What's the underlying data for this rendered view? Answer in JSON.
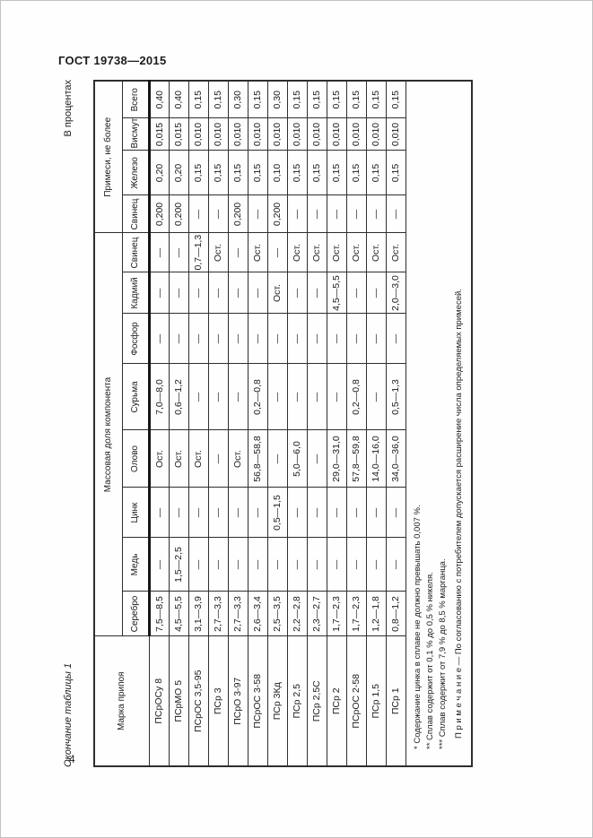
{
  "page": {
    "standard_number": "ГОСТ 19738—2015",
    "page_number": "4",
    "table_caption": "Окончание таблицы 1",
    "units_label": "В процентах"
  },
  "table": {
    "header": {
      "grade": "Марка припоя",
      "mass_fraction": "Массовая доля компонента",
      "impurities": "Примеси, не более"
    },
    "sub_headers": [
      "Серебро",
      "Медь",
      "Цинк",
      "Олово",
      "Сурьма",
      "Фосфор",
      "Кадмий",
      "Свинец",
      "Свинец",
      "Железо",
      "Висмут",
      "Всего"
    ],
    "rows": [
      {
        "grade": "ПСрОСу 8",
        "values": [
          "7,5—8,5",
          "—",
          "—",
          "Ост.",
          "7,0—8,0",
          "—",
          "—",
          "—",
          "0,200",
          "0,20",
          "0,015",
          "0,40"
        ]
      },
      {
        "grade": "ПСрМО 5",
        "values": [
          "4,5—5,5",
          "1,5—2,5",
          "—",
          "Ост.",
          "0,6—1,2",
          "—",
          "—",
          "—",
          "0,200",
          "0,20",
          "0,015",
          "0,40"
        ]
      },
      {
        "grade": "ПСрОС 3,5-95",
        "values": [
          "3,1—3,9",
          "—",
          "—",
          "Ост.",
          "—",
          "—",
          "—",
          "0,7—1,3",
          "—",
          "0,15",
          "0,010",
          "0,15"
        ]
      },
      {
        "grade": "ПСр 3",
        "values": [
          "2,7—3,3",
          "—",
          "—",
          "—",
          "—",
          "—",
          "—",
          "Ост.",
          "—",
          "0,15",
          "0,010",
          "0,15"
        ]
      },
      {
        "grade": "ПСрО 3-97",
        "values": [
          "2,7—3,3",
          "—",
          "—",
          "Ост.",
          "—",
          "—",
          "—",
          "—",
          "0,200",
          "0,15",
          "0,010",
          "0,30"
        ]
      },
      {
        "grade": "ПСрОС 3-58",
        "values": [
          "2,6—3,4",
          "—",
          "—",
          "56,8—58,8",
          "0,2—0,8",
          "—",
          "—",
          "Ост.",
          "—",
          "0,15",
          "0,010",
          "0,15"
        ]
      },
      {
        "grade": "ПСр 3Кд",
        "values": [
          "2,5—3,5",
          "—",
          "0,5—1,5",
          "—",
          "—",
          "—",
          "Ост.",
          "—",
          "0,200",
          "0,10",
          "0,010",
          "0,30"
        ]
      },
      {
        "grade": "ПСр 2,5",
        "values": [
          "2,2—2,8",
          "—",
          "—",
          "5,0—6,0",
          "—",
          "—",
          "—",
          "Ост.",
          "—",
          "0,15",
          "0,010",
          "0,15"
        ]
      },
      {
        "grade": "ПСр 2,5С",
        "values": [
          "2,3—2,7",
          "—",
          "—",
          "—",
          "—",
          "—",
          "—",
          "Ост.",
          "—",
          "0,15",
          "0,010",
          "0,15"
        ]
      },
      {
        "grade": "ПСр 2",
        "values": [
          "1,7—2,3",
          "—",
          "—",
          "29,0—31,0",
          "—",
          "—",
          "4,5—5,5",
          "Ост.",
          "—",
          "0,15",
          "0,010",
          "0,15"
        ]
      },
      {
        "grade": "ПСрОС 2-58",
        "values": [
          "1,7—2,3",
          "—",
          "—",
          "57,8—59,8",
          "0,2—0,8",
          "—",
          "—",
          "Ост.",
          "—",
          "0,15",
          "0,010",
          "0,15"
        ]
      },
      {
        "grade": "ПСр 1,5",
        "values": [
          "1,2—1,8",
          "—",
          "—",
          "14,0—16,0",
          "—",
          "—",
          "—",
          "Ост.",
          "—",
          "0,15",
          "0,010",
          "0,15"
        ]
      },
      {
        "grade": "ПСр 1",
        "values": [
          "0,8—1,2",
          "—",
          "—",
          "34,0—36,0",
          "0,5—1,3",
          "—",
          "2,0—3,0",
          "Ост.",
          "—",
          "0,15",
          "0,010",
          "0,15"
        ]
      }
    ],
    "footnotes": [
      "* Содержание цинка в сплаве не должно превышать 0,007 %.",
      "** Сплав содержит от 0,1 % до 0,5 % никеля.",
      "*** Сплав содержит от 7,9 % до 8,5 % марганца.",
      "П р и м е ч а н и е — По согласованию с потребителем допускается расширение числа определяемых примесей."
    ]
  }
}
